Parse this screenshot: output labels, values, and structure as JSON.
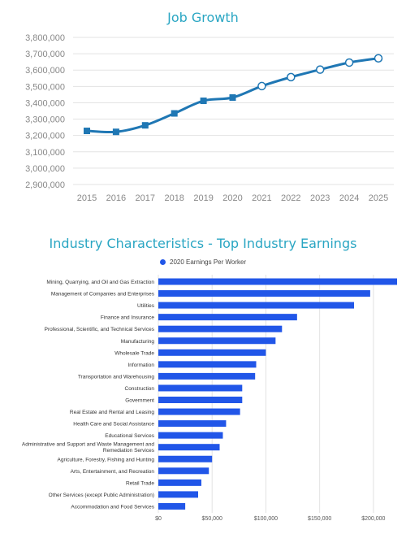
{
  "colors": {
    "title": "#2aa6c3",
    "line": "#1f77b4",
    "bar": "#2156e8",
    "grid": "#e3e3e3",
    "axis_text": "#888888"
  },
  "chart_data": [
    {
      "type": "line",
      "title": "Job Growth",
      "x": [
        "2015",
        "2016",
        "2017",
        "2018",
        "2019",
        "2020",
        "2021",
        "2022",
        "2023",
        "2024",
        "2025"
      ],
      "series": [
        {
          "values": [
            3228000,
            3222000,
            3262000,
            3335000,
            3412000,
            3432000,
            3502000,
            3557000,
            3603000,
            3646000,
            3672000
          ]
        }
      ],
      "marker_style": {
        "actual": "square",
        "projected": "open-circle",
        "projected_from": "2021"
      },
      "ylim": [
        2900000,
        3800000
      ],
      "yticks": [
        2900000,
        3000000,
        3100000,
        3200000,
        3300000,
        3400000,
        3500000,
        3600000,
        3700000,
        3800000
      ],
      "ytick_labels": [
        "2,900,000",
        "3,000,000",
        "3,100,000",
        "3,200,000",
        "3,300,000",
        "3,400,000",
        "3,500,000",
        "3,600,000",
        "3,700,000",
        "3,800,000"
      ],
      "grid": true
    },
    {
      "type": "bar",
      "orientation": "horizontal",
      "title": "Industry Characteristics - Top Industry Earnings",
      "legend": [
        "2020 Earnings Per Worker"
      ],
      "legend_position": "top",
      "categories": [
        "Mining, Quarrying, and Oil and Gas Extraction",
        "Management of Companies and Enterprises",
        "Utilities",
        "Finance and Insurance",
        "Professional, Scientific, and Technical Services",
        "Manufacturing",
        "Wholesale Trade",
        "Information",
        "Transportation and Warehousing",
        "Construction",
        "Government",
        "Real Estate and Rental and Leasing",
        "Health Care and Social Assistance",
        "Educational Services",
        "Administrative and Support and Waste Management and Remediation Services",
        "Agriculture, Forestry, Fishing and Hunting",
        "Arts, Entertainment, and Recreation",
        "Retail Trade",
        "Other Services (except Public Administration)",
        "Accommodation and Food Services"
      ],
      "category_label_lines": [
        [
          "Mining, Quarrying, and Oil and Gas Extraction"
        ],
        [
          "Management of Companies and Enterprises"
        ],
        [
          "Utilities"
        ],
        [
          "Finance and Insurance"
        ],
        [
          "Professional, Scientific, and Technical Services"
        ],
        [
          "Manufacturing"
        ],
        [
          "Wholesale Trade"
        ],
        [
          "Information"
        ],
        [
          "Transportation and Warehousing"
        ],
        [
          "Construction"
        ],
        [
          "Government"
        ],
        [
          "Real Estate and Rental and Leasing"
        ],
        [
          "Health Care and Social Assistance"
        ],
        [
          "Educational Services"
        ],
        [
          "Administrative and Support and Waste Management and",
          "Remediation Services"
        ],
        [
          "Agriculture, Forestry, Fishing and Hunting"
        ],
        [
          "Arts, Entertainment, and Recreation"
        ],
        [
          "Retail Trade"
        ],
        [
          "Other Services (except Public Administration)"
        ],
        [
          "Accommodation and Food Services"
        ]
      ],
      "series": [
        {
          "name": "2020 Earnings Per Worker",
          "values": [
            222000,
            197000,
            182000,
            129000,
            115000,
            109000,
            100000,
            91000,
            90000,
            78000,
            78000,
            76000,
            63000,
            60000,
            57000,
            50000,
            47000,
            40000,
            37000,
            25000
          ]
        }
      ],
      "xlim": [
        0,
        222000
      ],
      "xticks": [
        0,
        50000,
        100000,
        150000,
        200000
      ],
      "xtick_labels": [
        "$0",
        "$50,000",
        "$100,000",
        "$150,000",
        "$200,000"
      ],
      "grid": true
    }
  ]
}
